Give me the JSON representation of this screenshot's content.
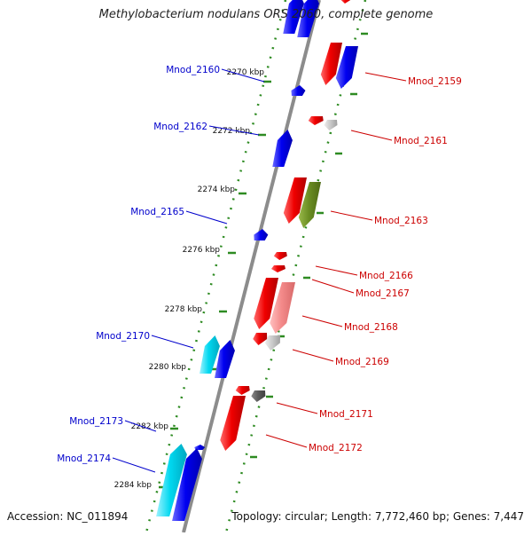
{
  "title": "Methylobacterium nodulans ORS 2060, complete genome",
  "footer": {
    "accession": "Accession: NC_011894",
    "summary": "Topology: circular; Length: 7,772,460 bp; Genes: 7,447"
  },
  "colors": {
    "backbone": "#8c8c8c",
    "tick": "#2e8b22",
    "forward_label": "#0000cc",
    "reverse_label": "#cc0000"
  },
  "scale_ticks": [
    "2270 kbp",
    "2272 kbp",
    "2274 kbp",
    "2276 kbp",
    "2278 kbp",
    "2280 kbp",
    "2282 kbp",
    "2284 kbp"
  ],
  "genes_forward": [
    "Mnod_2160",
    "Mnod_2162",
    "Mnod_2165",
    "Mnod_2170",
    "Mnod_2173",
    "Mnod_2174"
  ],
  "genes_reverse": [
    "Mnod_2159",
    "Mnod_2161",
    "Mnod_2163",
    "Mnod_2166",
    "Mnod_2167",
    "Mnod_2168",
    "Mnod_2169",
    "Mnod_2171",
    "Mnod_2172"
  ]
}
